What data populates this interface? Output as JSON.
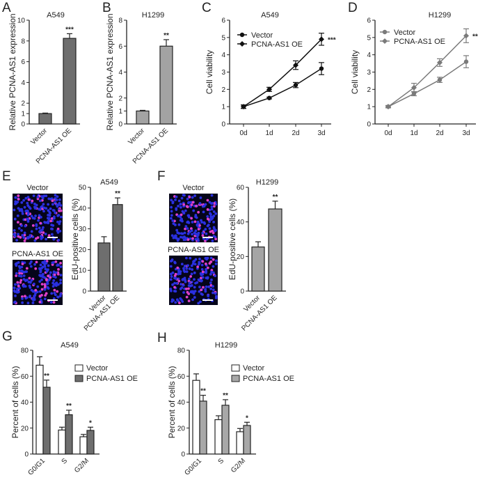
{
  "chart_data": [
    {
      "panel": "A",
      "type": "bar",
      "title": "A549",
      "ylabel": "Relative PCNA-AS1 expression",
      "ylim": [
        0,
        10
      ],
      "yticks": [
        0,
        1,
        2,
        4,
        6,
        8,
        10
      ],
      "categories": [
        "Vector",
        "PCNA-AS1 OE"
      ],
      "values": [
        1.0,
        8.25
      ],
      "errors": [
        0.05,
        0.45
      ],
      "significance": [
        "",
        "***"
      ],
      "color": "#6e6e6e"
    },
    {
      "panel": "B",
      "type": "bar",
      "title": "H1299",
      "ylabel": "Relative PCNA-AS1 expression",
      "ylim": [
        0,
        8
      ],
      "yticks": [
        0,
        1,
        2,
        4,
        6,
        8
      ],
      "categories": [
        "Vector",
        "PCNA-AS1 OE"
      ],
      "values": [
        1.0,
        6.0
      ],
      "errors": [
        0.05,
        0.5
      ],
      "significance": [
        "",
        "**"
      ],
      "color": "#a3a3a3"
    },
    {
      "panel": "C",
      "type": "line",
      "title": "A549",
      "ylabel": "Cell viability",
      "ylim": [
        0,
        6
      ],
      "yticks": [
        0,
        1,
        2,
        3,
        4,
        5,
        6
      ],
      "x": [
        "0d",
        "1d",
        "2d",
        "3d"
      ],
      "legend_position": "top-left",
      "line_color": "#111111",
      "end_significance": "***",
      "series": [
        {
          "name": "Vector",
          "marker": "circle",
          "values": [
            1.0,
            1.5,
            2.25,
            3.2
          ],
          "errors": [
            0.1,
            0.05,
            0.15,
            0.35
          ]
        },
        {
          "name": "PCNA-AS1 OE",
          "marker": "diamond",
          "values": [
            1.0,
            2.0,
            3.4,
            4.9
          ],
          "errors": [
            0.1,
            0.12,
            0.25,
            0.35
          ]
        }
      ]
    },
    {
      "panel": "D",
      "type": "line",
      "title": "H1299",
      "ylabel": "Cell viability",
      "ylim": [
        0,
        6
      ],
      "yticks": [
        0,
        1,
        2,
        3,
        4,
        5,
        6
      ],
      "x": [
        "0d",
        "1d",
        "2d",
        "3d"
      ],
      "legend_position": "top-left",
      "line_color": "#7a7a7a",
      "end_significance": "**",
      "series": [
        {
          "name": "Vector",
          "marker": "circle",
          "values": [
            1.0,
            1.75,
            2.55,
            3.6
          ],
          "errors": [
            0.07,
            0.12,
            0.15,
            0.35
          ]
        },
        {
          "name": "PCNA-AS1 OE",
          "marker": "diamond",
          "values": [
            1.0,
            2.1,
            3.55,
            5.1
          ],
          "errors": [
            0.05,
            0.25,
            0.22,
            0.4
          ]
        }
      ]
    },
    {
      "panel": "E",
      "type": "bar",
      "title": "A549",
      "ylabel": "EdU-positive cells (%)",
      "ylim": [
        0,
        50
      ],
      "yticks": [
        0,
        10,
        20,
        30,
        40,
        50
      ],
      "categories": [
        "Vector",
        "PCNA-AS1 OE"
      ],
      "values": [
        23.2,
        41.7
      ],
      "errors": [
        3.0,
        3.2
      ],
      "significance": [
        "",
        "**"
      ],
      "color": "#6e6e6e",
      "images": [
        "Vector",
        "PCNA-AS1 OE"
      ]
    },
    {
      "panel": "F",
      "type": "bar",
      "title": "H1299",
      "ylabel": "EdU-positive cells (%)",
      "ylim": [
        0,
        60
      ],
      "yticks": [
        0,
        20,
        40,
        60
      ],
      "categories": [
        "Vector",
        "PCNA-AS1 OE"
      ],
      "values": [
        25.5,
        47.5
      ],
      "errors": [
        3.0,
        4.5
      ],
      "significance": [
        "",
        "**"
      ],
      "color": "#a5a5a5",
      "images": [
        "Vector",
        "PCNA-AS1 OE"
      ]
    },
    {
      "panel": "G",
      "type": "bar",
      "title": "A549",
      "ylabel": "Percent of cells (%)",
      "ylim": [
        0,
        80
      ],
      "yticks": [
        0,
        20,
        40,
        60,
        80
      ],
      "categories": [
        "G0/G1",
        "S",
        "G2/M"
      ],
      "legend_position": "top-right",
      "series": [
        {
          "name": "Vector",
          "color": "#ffffff",
          "values": [
            68.5,
            18.5,
            13.3
          ],
          "errors": [
            6.5,
            2.2,
            1.8
          ]
        },
        {
          "name": "PCNA-AS1 OE",
          "color": "#6e6e6e",
          "values": [
            51.5,
            30.3,
            18.2
          ],
          "errors": [
            5.5,
            3.5,
            2.5
          ]
        }
      ],
      "significance": [
        "**",
        "**",
        "*"
      ]
    },
    {
      "panel": "H",
      "type": "bar",
      "title": "H1299",
      "ylabel": "Percent of cells (%)",
      "ylim": [
        0,
        80
      ],
      "yticks": [
        0,
        20,
        40,
        60,
        80
      ],
      "categories": [
        "G0/G1",
        "S",
        "G2/M"
      ],
      "legend_position": "top-right",
      "series": [
        {
          "name": "Vector",
          "color": "#ffffff",
          "values": [
            56.8,
            26.5,
            17.2
          ],
          "errors": [
            5.0,
            3.0,
            2.5
          ]
        },
        {
          "name": "PCNA-AS1 OE",
          "color": "#a8a8a8",
          "values": [
            40.8,
            37.6,
            22.0
          ],
          "errors": [
            4.5,
            4.3,
            2.5
          ]
        }
      ],
      "significance": [
        "**",
        "**",
        "*"
      ]
    }
  ]
}
